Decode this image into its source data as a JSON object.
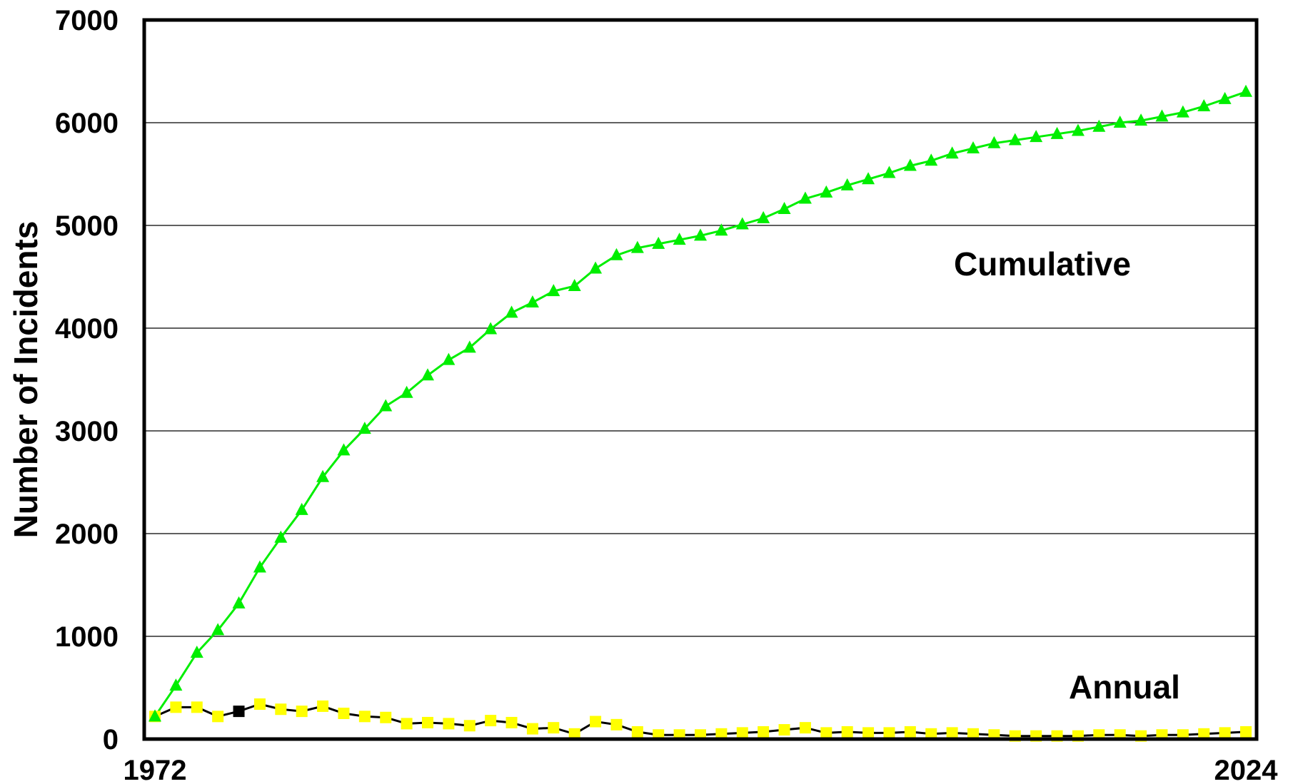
{
  "chart_data": {
    "type": "line",
    "title": "",
    "xlabel": "",
    "ylabel": "Number of Incidents",
    "x_tick_labels": [
      "1972",
      "2024"
    ],
    "y_ticks": [
      0,
      1000,
      2000,
      3000,
      4000,
      5000,
      6000,
      7000
    ],
    "xlim": [
      1972,
      2024
    ],
    "ylim": [
      0,
      7000
    ],
    "grid": "horizontal",
    "x": [
      1972,
      1973,
      1974,
      1975,
      1976,
      1977,
      1978,
      1979,
      1980,
      1981,
      1982,
      1983,
      1984,
      1985,
      1986,
      1987,
      1988,
      1989,
      1990,
      1991,
      1992,
      1993,
      1994,
      1995,
      1996,
      1997,
      1998,
      1999,
      2000,
      2001,
      2002,
      2003,
      2004,
      2005,
      2006,
      2007,
      2008,
      2009,
      2010,
      2011,
      2012,
      2013,
      2014,
      2015,
      2016,
      2017,
      2018,
      2019,
      2020,
      2021,
      2022,
      2023,
      2024
    ],
    "series": [
      {
        "name": "Cumulative",
        "label_text": "Cumulative",
        "color": "#00ee00",
        "marker": "triangle",
        "values": [
          220,
          520,
          840,
          1060,
          1320,
          1670,
          1960,
          2230,
          2550,
          2810,
          3020,
          3240,
          3370,
          3540,
          3690,
          3810,
          3990,
          4150,
          4250,
          4360,
          4410,
          4580,
          4710,
          4780,
          4820,
          4860,
          4900,
          4950,
          5010,
          5070,
          5160,
          5260,
          5320,
          5390,
          5450,
          5510,
          5580,
          5630,
          5700,
          5750,
          5800,
          5830,
          5860,
          5890,
          5920,
          5960,
          6000,
          6020,
          6060,
          6100,
          6160,
          6230,
          6300
        ]
      },
      {
        "name": "Annual",
        "label_text": "Annual",
        "color": "#000000",
        "marker_color": "#ffff00",
        "marker": "square",
        "highlight_index": 4,
        "highlight_color": "#000000",
        "values": [
          220,
          310,
          310,
          220,
          270,
          340,
          290,
          270,
          320,
          250,
          220,
          210,
          150,
          160,
          150,
          130,
          180,
          160,
          100,
          110,
          50,
          170,
          140,
          70,
          40,
          40,
          40,
          50,
          60,
          70,
          90,
          110,
          60,
          70,
          60,
          60,
          70,
          50,
          60,
          50,
          40,
          30,
          30,
          30,
          30,
          40,
          40,
          30,
          40,
          40,
          50,
          60,
          70
        ]
      }
    ]
  }
}
